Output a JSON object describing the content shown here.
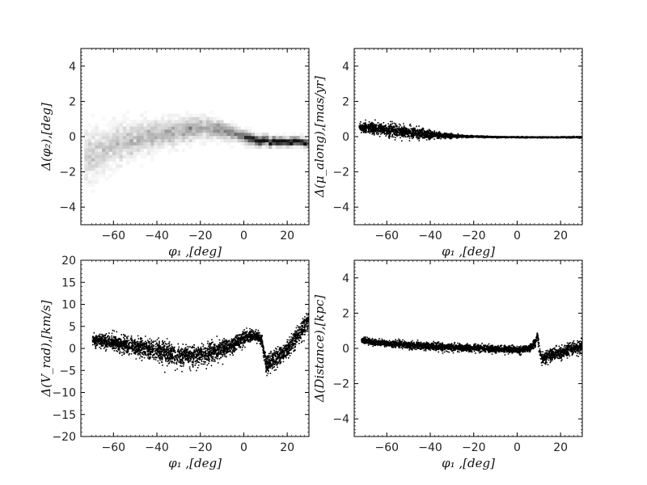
{
  "chart_data": [
    {
      "type": "heatmap",
      "xlabel": "φ₁ ,[deg]",
      "ylabel": "Δ(φ₂),[deg]",
      "xlim": [
        -75,
        30
      ],
      "ylim": [
        -5,
        5
      ],
      "xticks": [
        "−60",
        "−40",
        "−20",
        "0",
        "20"
      ],
      "yticks": [
        "4",
        "2",
        "0",
        "−2",
        "−4"
      ],
      "track": {
        "x": [
          -72,
          -60,
          -50,
          -40,
          -30,
          -20,
          -10,
          0,
          5,
          8,
          10,
          12,
          14,
          16,
          20,
          25,
          30
        ],
        "y": [
          -1.2,
          -0.5,
          -0.1,
          0.1,
          0.3,
          0.5,
          0.4,
          0.0,
          -0.2,
          -0.3,
          -0.1,
          -0.4,
          -0.2,
          -0.3,
          -0.3,
          -0.25,
          -0.4
        ]
      },
      "spread": [
        1.2,
        0.9,
        0.8,
        0.7,
        0.6,
        0.5,
        0.4,
        0.3,
        0.25,
        0.2,
        0.25,
        0.2,
        0.2,
        0.2,
        0.2,
        0.2,
        0.2
      ]
    },
    {
      "type": "scatter",
      "xlabel": "φ₁ ,[deg]",
      "ylabel": "Δ(μ_along),[mas/yr]",
      "xlim": [
        -75,
        30
      ],
      "ylim": [
        -5,
        5
      ],
      "xticks": [
        "−60",
        "−40",
        "−20",
        "0",
        "20"
      ],
      "yticks": [
        "4",
        "2",
        "0",
        "−2",
        "−4"
      ],
      "track": {
        "x": [
          -73,
          -65,
          -55,
          -45,
          -35,
          -25,
          -15,
          0,
          15,
          30
        ],
        "y": [
          0.6,
          0.5,
          0.35,
          0.2,
          0.1,
          0.05,
          0.02,
          0.0,
          0.0,
          0.0
        ]
      },
      "spread": [
        0.25,
        0.35,
        0.35,
        0.3,
        0.15,
        0.06,
        0.04,
        0.03,
        0.03,
        0.04
      ]
    },
    {
      "type": "scatter",
      "xlabel": "φ₁ ,[deg]",
      "ylabel": "Δ(V_rad),[km/s]",
      "xlim": [
        -75,
        30
      ],
      "ylim": [
        -20,
        20
      ],
      "xticks": [
        "−60",
        "−40",
        "−20",
        "0",
        "20"
      ],
      "yticks": [
        "20",
        "15",
        "10",
        "5",
        "0",
        "−5",
        "−10",
        "−15",
        "−20"
      ],
      "track": {
        "x": [
          -70,
          -60,
          -50,
          -40,
          -30,
          -20,
          -10,
          0,
          5,
          8,
          10,
          12,
          15,
          20,
          25,
          30
        ],
        "y": [
          2.0,
          1.5,
          0.5,
          -0.5,
          -1.5,
          -1.5,
          0.0,
          2.5,
          3.0,
          2.0,
          -4.0,
          -3.0,
          -2.0,
          0.0,
          3.0,
          7.0
        ]
      },
      "spread": [
        1.3,
        1.6,
        2.0,
        2.4,
        2.4,
        2.3,
        2.0,
        1.5,
        1.2,
        1.2,
        1.8,
        2.0,
        2.0,
        2.0,
        2.0,
        2.0
      ]
    },
    {
      "type": "scatter",
      "xlabel": "φ₁ ,[deg]",
      "ylabel": "Δ(Distance),[kpc]",
      "xlim": [
        -75,
        30
      ],
      "ylim": [
        -5,
        5
      ],
      "xticks": [
        "−60",
        "−40",
        "−20",
        "0",
        "20"
      ],
      "yticks": [
        "4",
        "2",
        "0",
        "−2",
        "−4"
      ],
      "track": {
        "x": [
          -72,
          -60,
          -40,
          -20,
          0,
          5,
          8,
          9,
          10,
          11,
          13,
          20,
          25,
          30
        ],
        "y": [
          0.5,
          0.3,
          0.15,
          0.05,
          -0.05,
          0.0,
          0.3,
          0.8,
          0.0,
          -0.6,
          -0.4,
          -0.2,
          0.0,
          0.2
        ]
      },
      "spread": [
        0.15,
        0.18,
        0.2,
        0.2,
        0.2,
        0.2,
        0.25,
        0.3,
        0.3,
        0.3,
        0.35,
        0.35,
        0.35,
        0.35
      ]
    }
  ]
}
